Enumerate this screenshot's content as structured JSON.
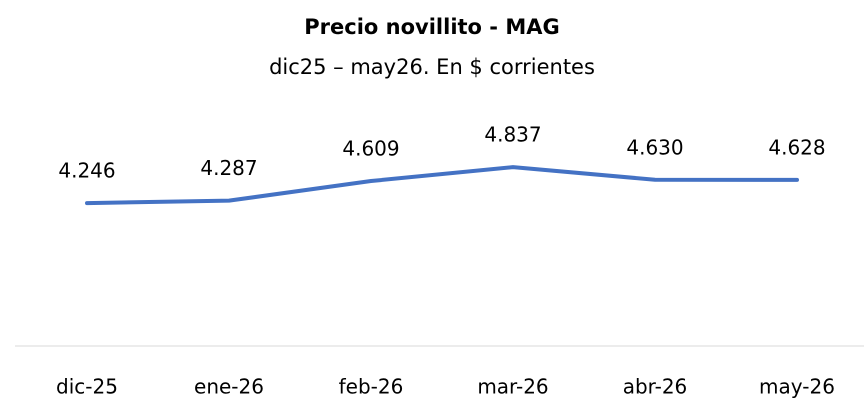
{
  "chart_data": {
    "type": "line",
    "title": "Precio novillito - MAG",
    "subtitle": "dic25 – may26. En $ corrientes",
    "categories": [
      "dic-25",
      "ene-26",
      "feb-26",
      "mar-26",
      "abr-26",
      "may-26"
    ],
    "series": [
      {
        "name": "Precio novillito",
        "color": "#4472c4",
        "values": [
          4246,
          4287,
          4609,
          4837,
          4630,
          4628
        ],
        "value_labels": [
          "4.246",
          "4.287",
          "4.609",
          "4.837",
          "4.630",
          "4.628"
        ]
      }
    ],
    "ylim": [
      1900,
      5800
    ]
  }
}
